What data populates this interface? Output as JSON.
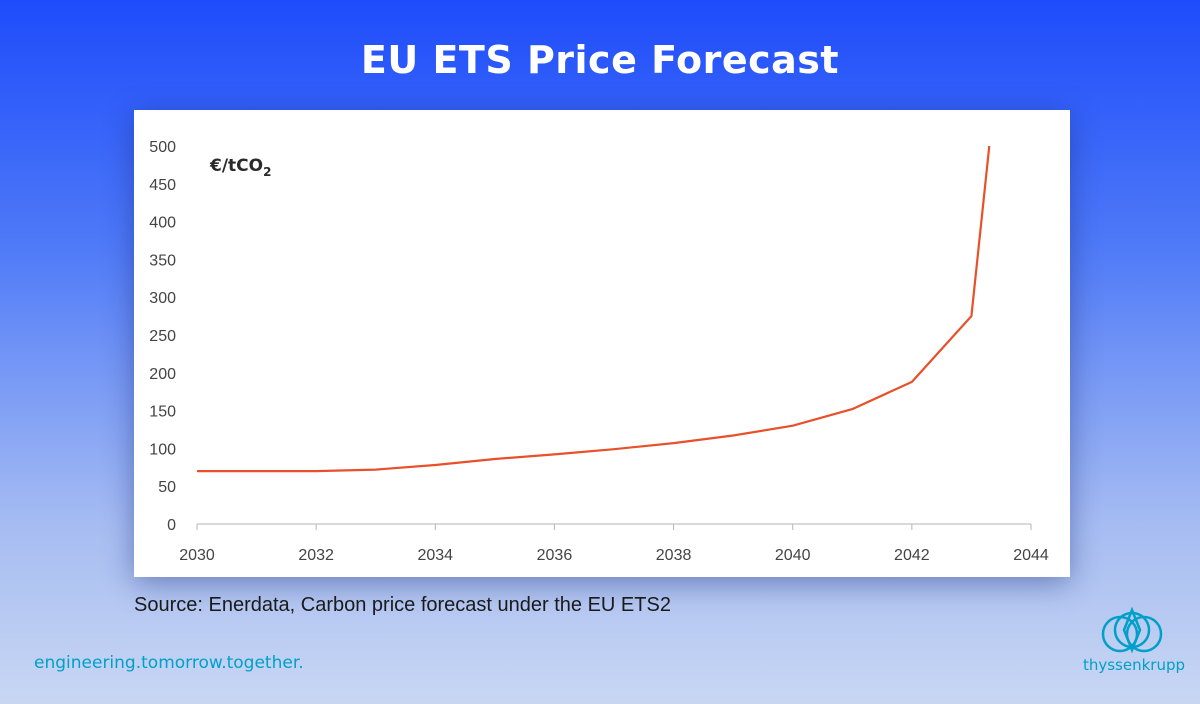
{
  "header": {
    "title": "EU ETS Price Forecast"
  },
  "footer": {
    "source": "Source: Enerdata, Carbon price forecast under the EU ETS2",
    "tagline": "engineering.tomorrow.together.",
    "brand": "thyssenkrupp"
  },
  "colors": {
    "line": "#e8502a",
    "accent": "#00a0c8",
    "title": "#ffffff"
  },
  "chart_data": {
    "type": "line",
    "ylabel_main": "€/tCO",
    "ylabel_sub": "2",
    "xlim": [
      2030,
      2044
    ],
    "ylim": [
      0,
      500
    ],
    "x_ticks": [
      2030,
      2032,
      2034,
      2036,
      2038,
      2040,
      2042,
      2044
    ],
    "y_ticks": [
      0,
      50,
      100,
      150,
      200,
      250,
      300,
      350,
      400,
      450,
      500
    ],
    "grid": false,
    "series": [
      {
        "x": [
          2030,
          2031,
          2032,
          2033,
          2034,
          2035,
          2036,
          2037,
          2038,
          2039,
          2040,
          2041,
          2042,
          2043,
          2043.3
        ],
        "y": [
          70,
          70,
          70,
          72,
          78,
          86,
          92,
          99,
          107,
          117,
          130,
          152,
          188,
          275,
          500
        ]
      }
    ]
  }
}
